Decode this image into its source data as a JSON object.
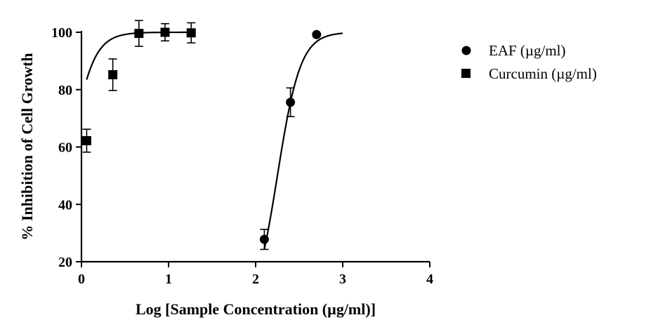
{
  "chart_data": {
    "type": "scatter",
    "title": "",
    "xlabel": "Log [Sample Concentration (µg/ml)]",
    "ylabel": "% Inhibition of Cell Growth",
    "xlim": [
      0,
      4
    ],
    "ylim": [
      20,
      100
    ],
    "x_ticks": [
      "0",
      "1",
      "2",
      "3",
      "4"
    ],
    "y_ticks": [
      "20",
      "40",
      "60",
      "80",
      "100"
    ],
    "grid": false,
    "legend_position": "top-right",
    "series": [
      {
        "name": "EAF (µg/ml)",
        "marker": "circle",
        "points": [
          {
            "x": 2.1,
            "y": 27.8,
            "err": 3.5
          },
          {
            "x": 2.4,
            "y": 75.6,
            "err": 5.0
          },
          {
            "x": 2.7,
            "y": 99.2,
            "err": 0
          }
        ],
        "fit": {
          "bottom": 0,
          "top": 100,
          "logEC50": 2.25,
          "hill": 3.27,
          "x_range": [
            2.1,
            3.0
          ]
        }
      },
      {
        "name": "Curcumin (µg/ml)",
        "marker": "square",
        "points": [
          {
            "x": 0.06,
            "y": 62.2,
            "err": 4.0
          },
          {
            "x": 0.36,
            "y": 85.2,
            "err": 5.5
          },
          {
            "x": 0.66,
            "y": 99.6,
            "err": 4.5
          },
          {
            "x": 0.96,
            "y": 100.0,
            "err": 3.0
          },
          {
            "x": 1.26,
            "y": 99.8,
            "err": 3.5
          }
        ],
        "fit": {
          "bottom": 0,
          "top": 100,
          "logEC50": -0.16,
          "hill": 3.2,
          "x_range": [
            0.06,
            1.26
          ]
        }
      }
    ]
  }
}
